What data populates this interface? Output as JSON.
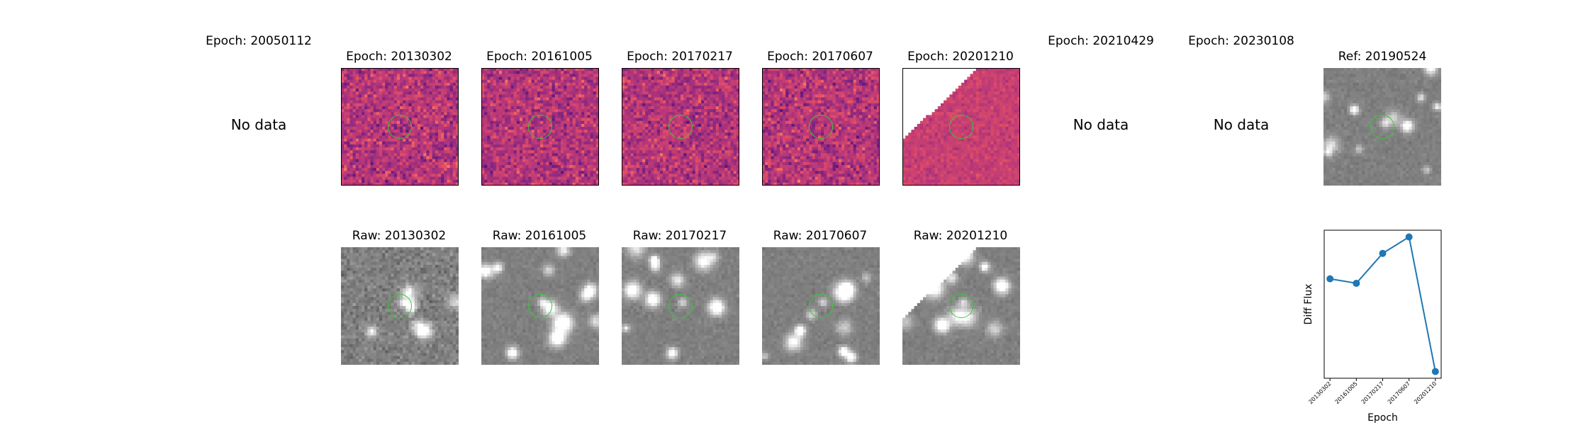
{
  "top_row": [
    {
      "title": "Epoch: 20050112",
      "has_data": false,
      "no_data_label": "No data"
    },
    {
      "title": "Epoch: 20130302",
      "has_data": true,
      "style": "diff",
      "seed": 11
    },
    {
      "title": "Epoch: 20161005",
      "has_data": true,
      "style": "diff",
      "seed": 23
    },
    {
      "title": "Epoch: 20170217",
      "has_data": true,
      "style": "diff",
      "seed": 37
    },
    {
      "title": "Epoch: 20170607",
      "has_data": true,
      "style": "diff",
      "seed": 41
    },
    {
      "title": "Epoch: 20201210",
      "has_data": true,
      "style": "diff-masked",
      "seed": 53
    },
    {
      "title": "Epoch: 20210429",
      "has_data": false,
      "no_data_label": "No data"
    },
    {
      "title": "Epoch: 20230108",
      "has_data": false,
      "no_data_label": "No data"
    },
    {
      "title": "Ref: 20190524",
      "has_data": true,
      "style": "ref",
      "seed": 67
    }
  ],
  "bottom_row": [
    {
      "title": "Raw: 20130302",
      "style": "raw-noisy",
      "seed": 71
    },
    {
      "title": "Raw: 20161005",
      "style": "raw",
      "seed": 73
    },
    {
      "title": "Raw: 20170217",
      "style": "raw",
      "seed": 79
    },
    {
      "title": "Raw: 20170607",
      "style": "raw",
      "seed": 83
    },
    {
      "title": "Raw: 20201210",
      "style": "raw-masked",
      "seed": 89
    }
  ],
  "colors": {
    "aperture": "#32cd32",
    "series": "#1f77b4"
  },
  "chart_data": {
    "type": "line",
    "xlabel": "Epoch",
    "ylabel": "Diff Flux",
    "categories": [
      "20130302",
      "20161005",
      "20170217",
      "20170607",
      "20201210"
    ],
    "series": [
      {
        "values": [
          0.62,
          0.59,
          0.79,
          0.9,
          0.0
        ]
      }
    ],
    "y_ticks_shown": false,
    "grid": false,
    "legend": "none"
  }
}
